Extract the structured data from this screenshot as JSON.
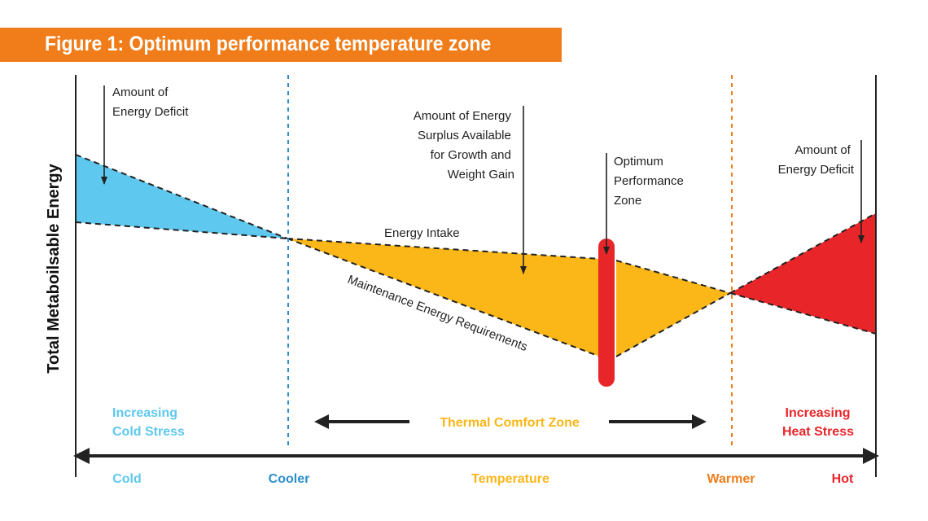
{
  "figure_title": "Figure 1: Optimum performance temperature zone",
  "y_axis_label": "Total Metaboilsable Energy",
  "annotations": {
    "deficit_left": [
      "Amount of",
      "Energy Deficit"
    ],
    "surplus": [
      "Amount of Energy",
      "Surplus Available",
      "for Growth and",
      "Weight Gain"
    ],
    "optimum_zone": [
      "Optimum",
      "Performance",
      "Zone"
    ],
    "deficit_right": [
      "Amount of",
      "Energy Deficit"
    ],
    "energy_intake": "Energy Intake",
    "maintenance": "Maintenance Energy Requirements"
  },
  "zones": {
    "cold_stress": [
      "Increasing",
      "Cold Stress"
    ],
    "thermal_comfort": "Thermal Comfort Zone",
    "heat_stress": [
      "Increasing",
      "Heat Stress"
    ]
  },
  "x_axis_labels": {
    "cold": "Cold",
    "cooler": "Cooler",
    "temperature": "Temperature",
    "warmer": "Warmer",
    "hot": "Hot"
  },
  "colors": {
    "title_bar": "#f07d1a",
    "cold": "#5ec8ef",
    "cooler": "#2b8fcc",
    "comfort": "#fbb617",
    "warmer": "#f07d1a",
    "heat": "#e8262a",
    "optimum_bar": "#e8262a",
    "line": "#222222"
  }
}
